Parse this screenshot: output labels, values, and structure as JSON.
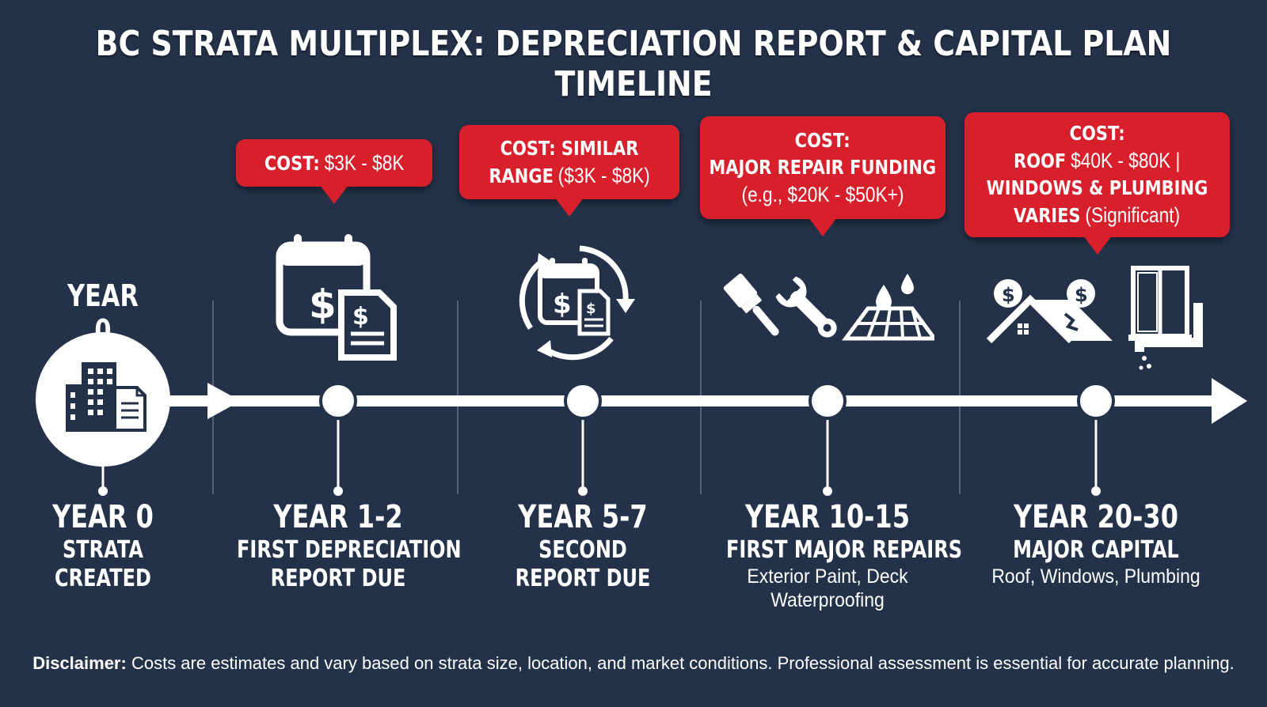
{
  "title": "BC STRATA MULTIPLEX: DEPRECIATION REPORT & CAPITAL PLAN TIMELINE",
  "start_label": "YEAR 0",
  "colors": {
    "background": "#243249",
    "accent": "#d8202d",
    "line": "#ffffff"
  },
  "milestones": [
    {
      "year": "YEAR 0",
      "subtitle_lines": [
        "STRATA",
        "CREATED"
      ],
      "details": [],
      "icon": "building-document-icon"
    },
    {
      "year": "YEAR 1-2",
      "subtitle_lines": [
        "FIRST DEPRECIATION",
        "REPORT DUE"
      ],
      "details": [],
      "icon": "calendar-dollar-document-icon",
      "cost": {
        "label": "COST:",
        "value": "$3K - $8K"
      }
    },
    {
      "year": "YEAR 5-7",
      "subtitle_lines": [
        "SECOND",
        "REPORT DUE"
      ],
      "details": [],
      "icon": "recurring-calendar-dollar-icon",
      "cost": {
        "line1": "COST: SIMILAR",
        "line2_bold": "RANGE",
        "line2_normal": "($3K - $8K)"
      }
    },
    {
      "year": "YEAR 10-15",
      "subtitle_lines": [
        "FIRST MAJOR REPAIRS"
      ],
      "details": [
        "Exterior Paint, Deck",
        "Waterproofing"
      ],
      "icon": "paintbrush-wrench-deck-icon",
      "cost": {
        "line1": "COST:",
        "line2": "MAJOR REPAIR FUNDING",
        "line3": "(e.g., $20K - $50K+)"
      }
    },
    {
      "year": "YEAR 20-30",
      "subtitle_lines": [
        "MAJOR CAPITAL"
      ],
      "details": [
        "Roof, Windows, Plumbing"
      ],
      "icon": "roof-window-plumbing-icon",
      "cost": {
        "line1": "COST:",
        "line2_bold": "ROOF",
        "line2_normal": "$40K - $80K |",
        "line3": "WINDOWS & PLUMBING",
        "line4_bold": "VARIES",
        "line4_normal": "(Significant)"
      }
    }
  ],
  "disclaimer": {
    "label": "Disclaimer:",
    "text": "Costs are estimates and vary based on strata size, location, and market conditions. Professional assessment is essential for accurate planning."
  }
}
